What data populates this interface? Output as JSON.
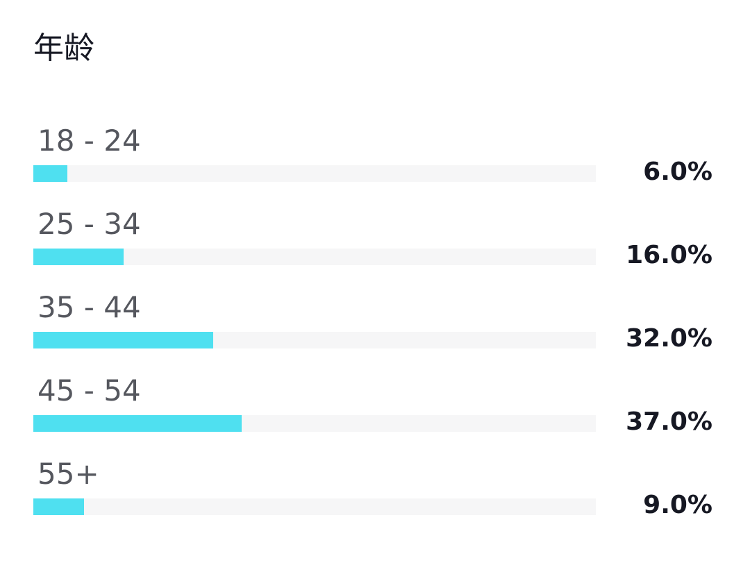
{
  "title": "年龄",
  "chart_data": {
    "type": "bar",
    "orientation": "horizontal",
    "title": "年龄",
    "categories": [
      "18 - 24",
      "25 - 34",
      "35 - 44",
      "45 - 54",
      "55+"
    ],
    "values": [
      6.0,
      16.0,
      32.0,
      37.0,
      9.0
    ],
    "value_labels": [
      "6.0%",
      "16.0%",
      "32.0%",
      "37.0%",
      "9.0%"
    ],
    "unit": "%",
    "xlim": [
      0,
      100
    ],
    "grid": false,
    "legend": "none",
    "colors": {
      "bar": "#4fe0f0",
      "track": "#f6f6f7"
    }
  }
}
